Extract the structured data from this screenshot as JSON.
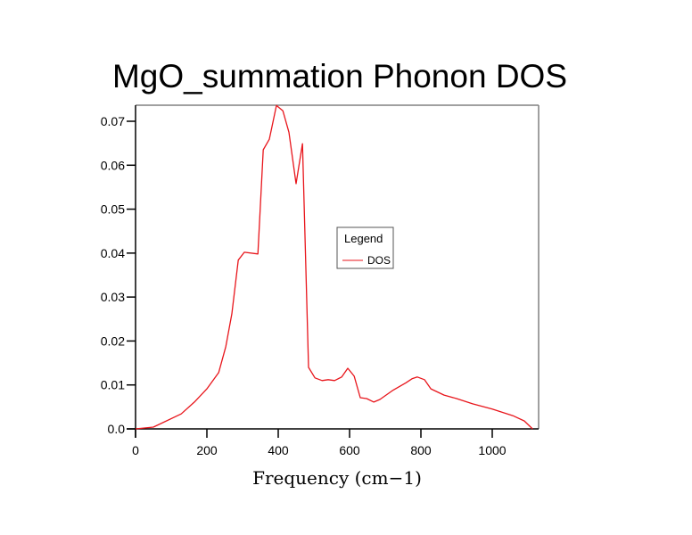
{
  "chart_data": {
    "type": "line",
    "title": "MgO_summation Phonon DOS",
    "xlabel": "Frequency (cm−1)",
    "ylabel": "",
    "xlim": [
      0,
      1130
    ],
    "ylim": [
      0,
      0.0737
    ],
    "xticks": [
      0,
      200,
      400,
      600,
      800,
      1000
    ],
    "xtick_labels": [
      "0",
      "200",
      "400",
      "600",
      "800",
      "1000"
    ],
    "yticks": [
      0.0,
      0.01,
      0.02,
      0.03,
      0.04,
      0.05,
      0.06,
      0.07
    ],
    "ytick_labels": [
      "0.0",
      "0.01",
      "0.02",
      "0.03",
      "0.04",
      "0.05",
      "0.06",
      "0.07"
    ],
    "grid": false,
    "legend": {
      "title": "Legend",
      "placement": "center-right"
    },
    "series": [
      {
        "name": "DOS",
        "color": "#e8151b",
        "x": [
          0,
          50,
          128,
          165,
          200,
          233,
          253,
          270,
          288,
          305,
          343,
          358,
          375,
          395,
          413,
          430,
          450,
          468,
          485,
          503,
          523,
          540,
          558,
          578,
          595,
          613,
          630,
          648,
          668,
          685,
          720,
          758,
          775,
          790,
          810,
          828,
          865,
          900,
          945,
          1000,
          1058,
          1090,
          1113
        ],
        "y": [
          0.0,
          0.0004,
          0.0034,
          0.0061,
          0.0091,
          0.0128,
          0.0187,
          0.0262,
          0.0384,
          0.0402,
          0.0398,
          0.0635,
          0.0659,
          0.0736,
          0.0724,
          0.0675,
          0.0558,
          0.0649,
          0.014,
          0.0116,
          0.011,
          0.0112,
          0.011,
          0.0118,
          0.0138,
          0.012,
          0.0071,
          0.0069,
          0.0061,
          0.0067,
          0.0087,
          0.0105,
          0.0114,
          0.0118,
          0.0112,
          0.0091,
          0.0077,
          0.0069,
          0.0057,
          0.0045,
          0.003,
          0.0018,
          0.0
        ]
      }
    ]
  }
}
